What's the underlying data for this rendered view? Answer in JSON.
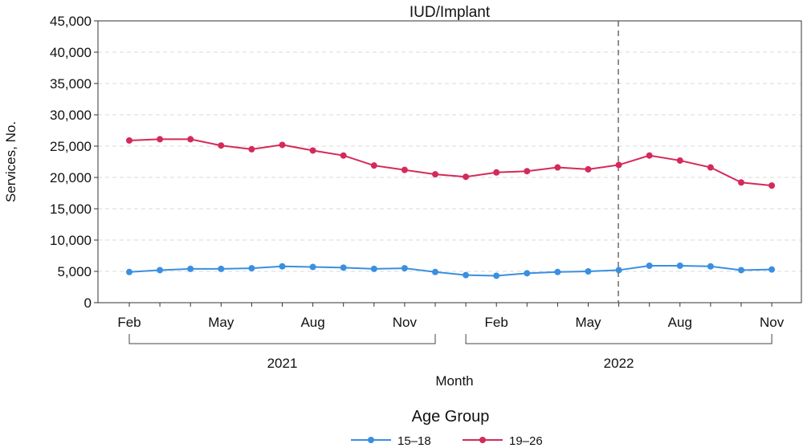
{
  "chart_data": {
    "type": "line",
    "title": "IUD/Implant",
    "xlabel": "Month",
    "ylabel": "Services, No.",
    "ylim": [
      0,
      45000
    ],
    "yticks": [
      0,
      5000,
      10000,
      15000,
      20000,
      25000,
      30000,
      35000,
      40000,
      45000
    ],
    "ytick_labels": [
      "0",
      "5,000",
      "10,000",
      "15,000",
      "20,000",
      "25,000",
      "30,000",
      "35,000",
      "40,000",
      "45,000"
    ],
    "x": [
      "2021-02",
      "2021-03",
      "2021-04",
      "2021-05",
      "2021-06",
      "2021-07",
      "2021-08",
      "2021-09",
      "2021-10",
      "2021-11",
      "2021-12",
      "2022-01",
      "2022-02",
      "2022-03",
      "2022-04",
      "2022-05",
      "2022-06",
      "2022-07",
      "2022-08",
      "2022-09",
      "2022-10",
      "2022-11"
    ],
    "xtick_labels": [
      {
        "x": "2021-02",
        "label": "Feb"
      },
      {
        "x": "2021-05",
        "label": "May"
      },
      {
        "x": "2021-08",
        "label": "Aug"
      },
      {
        "x": "2021-11",
        "label": "Nov"
      },
      {
        "x": "2022-02",
        "label": "Feb"
      },
      {
        "x": "2022-05",
        "label": "May"
      },
      {
        "x": "2022-08",
        "label": "Aug"
      },
      {
        "x": "2022-11",
        "label": "Nov"
      }
    ],
    "year_groups": [
      {
        "label": "2021",
        "start": "2021-02",
        "end": "2021-12"
      },
      {
        "label": "2022",
        "start": "2022-01",
        "end": "2022-11"
      }
    ],
    "reference_line": {
      "x": "2022-06",
      "style": "dashed"
    },
    "series": [
      {
        "name": "15–18",
        "color": "#3a8fe0",
        "values": [
          4900,
          5200,
          5400,
          5400,
          5500,
          5800,
          5700,
          5600,
          5400,
          5500,
          4900,
          4400,
          4300,
          4700,
          4900,
          5000,
          5200,
          5900,
          5900,
          5800,
          5200,
          5300
        ]
      },
      {
        "name": "19–26",
        "color": "#d42a5a",
        "values": [
          25900,
          26100,
          26100,
          25100,
          24500,
          25200,
          24300,
          23500,
          21900,
          21200,
          20500,
          20100,
          20800,
          21000,
          21600,
          21300,
          22000,
          23500,
          22700,
          21600,
          19200,
          18700
        ]
      }
    ],
    "legend": {
      "title": "Age Group",
      "position": "bottom-center"
    },
    "grid": {
      "horizontal": true,
      "style": "dashed"
    }
  }
}
